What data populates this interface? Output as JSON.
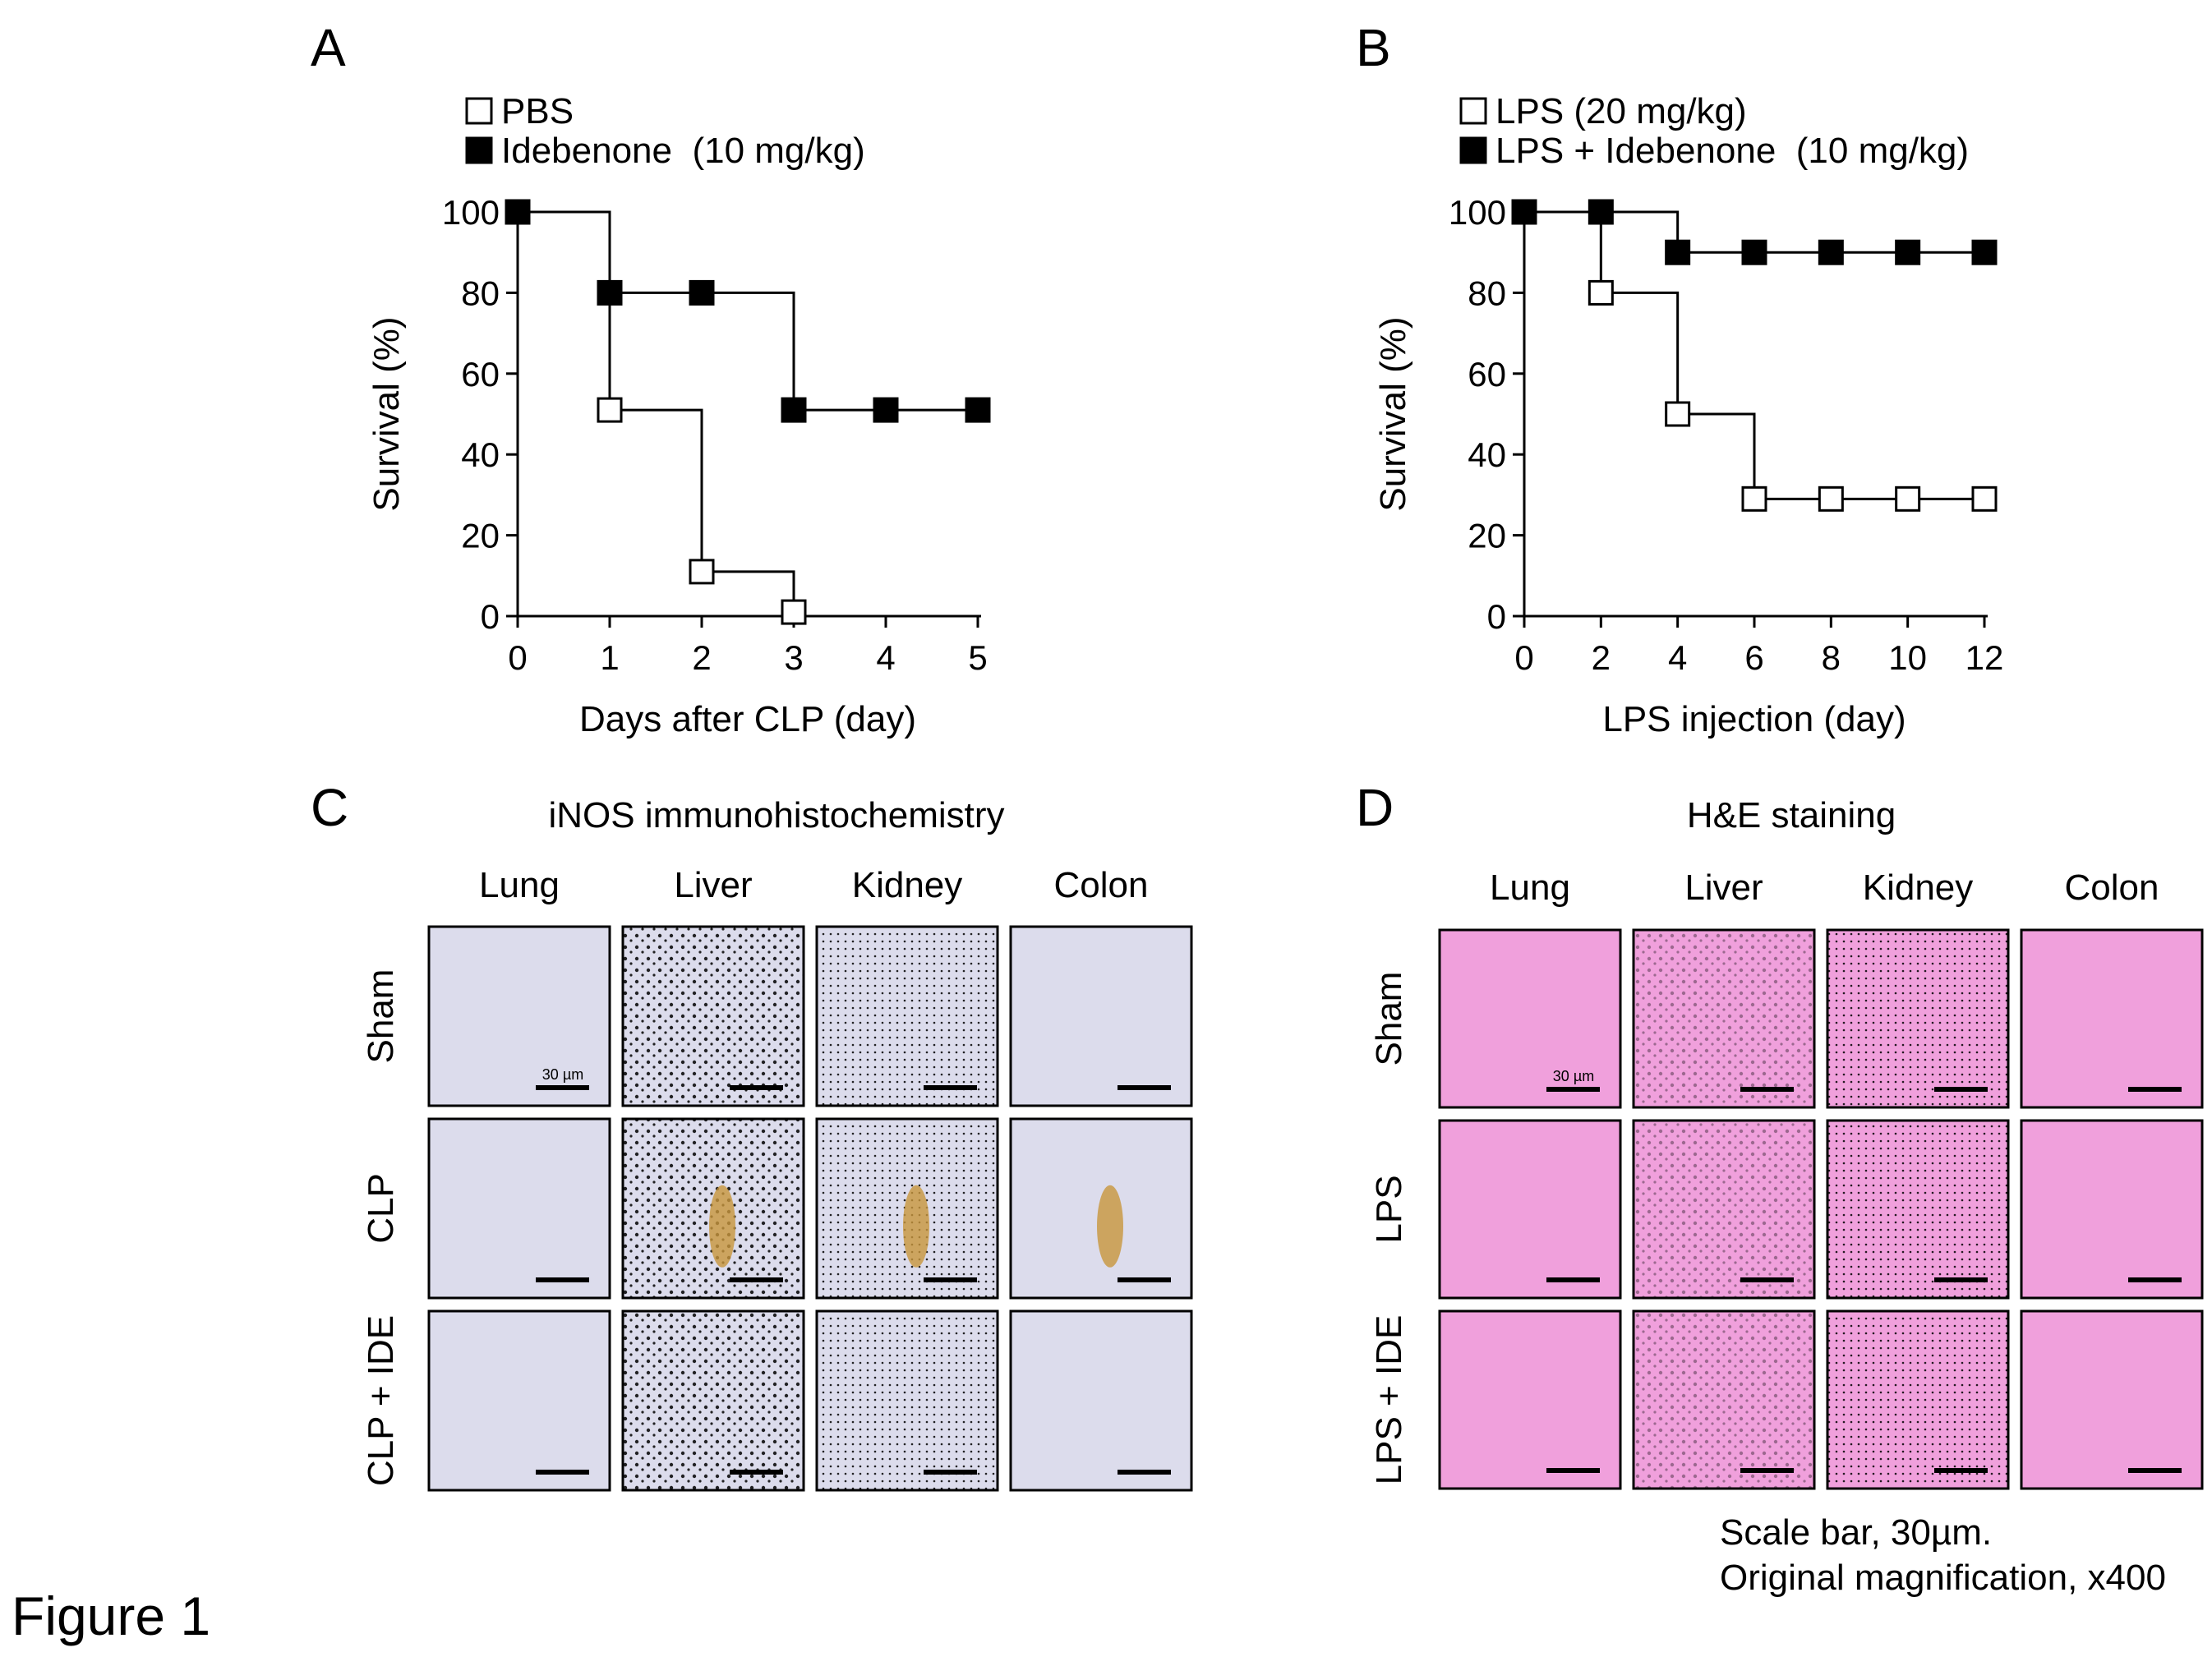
{
  "figure_label": "Figure 1",
  "chart_data": [
    {
      "panel": "A",
      "type": "line",
      "step": true,
      "xlabel": "Days after CLP (day)",
      "ylabel": "Survival (%)",
      "xlim": [
        0,
        5
      ],
      "ylim": [
        0,
        100
      ],
      "x_ticks": [
        0,
        1,
        2,
        3,
        4,
        5
      ],
      "y_ticks": [
        0,
        20,
        40,
        60,
        80,
        100
      ],
      "legend_position": "top-left",
      "series": [
        {
          "name": "PBS",
          "marker": "open-square",
          "x": [
            0,
            1,
            2,
            3
          ],
          "y": [
            100,
            51,
            11,
            1
          ]
        },
        {
          "name": "Idebenone  (10 mg/kg)",
          "marker": "filled-square",
          "x": [
            0,
            1,
            2,
            3,
            4,
            5
          ],
          "y": [
            100,
            80,
            80,
            51,
            51,
            51
          ]
        }
      ]
    },
    {
      "panel": "B",
      "type": "line",
      "step": true,
      "xlabel": "LPS injection (day)",
      "ylabel": "Survival (%)",
      "xlim": [
        0,
        12
      ],
      "ylim": [
        0,
        100
      ],
      "x_ticks": [
        0,
        2,
        4,
        6,
        8,
        10,
        12
      ],
      "y_ticks": [
        0,
        20,
        40,
        60,
        80,
        100
      ],
      "legend_position": "top-left",
      "series": [
        {
          "name": "LPS (20 mg/kg)",
          "marker": "open-square",
          "x": [
            0,
            2,
            4,
            6,
            8,
            10,
            12
          ],
          "y": [
            100,
            80,
            50,
            29,
            29,
            29,
            29
          ]
        },
        {
          "name": "LPS + Idebenone  (10 mg/kg)",
          "marker": "filled-square",
          "x": [
            0,
            2,
            4,
            6,
            8,
            10,
            12
          ],
          "y": [
            100,
            100,
            90,
            90,
            90,
            90,
            90
          ]
        }
      ]
    }
  ],
  "panels": {
    "A": {
      "letter": "A"
    },
    "B": {
      "letter": "B"
    },
    "C": {
      "letter": "C",
      "title": "iNOS immunohistochemistry",
      "columns": [
        "Lung",
        "Liver",
        "Kidney",
        "Colon"
      ],
      "rows": [
        "Sham",
        "CLP",
        "CLP + IDE"
      ],
      "scale_label": "30 µm"
    },
    "D": {
      "letter": "D",
      "title": "H&E staining",
      "columns": [
        "Lung",
        "Liver",
        "Kidney",
        "Colon"
      ],
      "rows": [
        "Sham",
        "LPS",
        "LPS + IDE"
      ],
      "scale_label": "30 µm",
      "footnote_1": "Scale bar, 30µm.",
      "footnote_2": "Original magnification, x400"
    }
  },
  "colors": {
    "ihc_background": "#dcdcec",
    "ihc_stain": "#4a5bb5",
    "ihc_positive": "#c8963c",
    "he_background": "#f0a0dc",
    "he_stain": "#8a3aa8"
  }
}
